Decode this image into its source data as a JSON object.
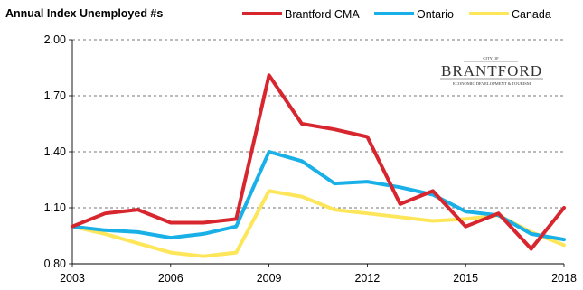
{
  "chart_data": {
    "type": "line",
    "title": "Annual Index Unemployed #s",
    "x": [
      2003,
      2004,
      2005,
      2006,
      2007,
      2008,
      2009,
      2010,
      2011,
      2012,
      2013,
      2014,
      2015,
      2016,
      2017,
      2018
    ],
    "x_tick_labels": [
      "2003",
      "2006",
      "2009",
      "2012",
      "2015",
      "2018"
    ],
    "y_tick_labels": [
      "0.80",
      "1.10",
      "1.40",
      "1.70",
      "2.00"
    ],
    "ylim": [
      0.8,
      2.0
    ],
    "grid": "horizontal dashed",
    "legend_position": "top",
    "series": [
      {
        "name": "Brantford CMA",
        "color": "#d7262e",
        "values": [
          1.0,
          1.07,
          1.09,
          1.02,
          1.02,
          1.04,
          1.81,
          1.55,
          1.52,
          1.48,
          1.12,
          1.19,
          1.0,
          1.07,
          0.88,
          1.1
        ]
      },
      {
        "name": "Ontario",
        "color": "#18b0e6",
        "values": [
          1.0,
          0.98,
          0.97,
          0.94,
          0.96,
          1.0,
          1.4,
          1.35,
          1.23,
          1.24,
          1.21,
          1.17,
          1.08,
          1.06,
          0.96,
          0.93
        ]
      },
      {
        "name": "Canada",
        "color": "#fde65a",
        "values": [
          1.0,
          0.96,
          0.91,
          0.86,
          0.84,
          0.86,
          1.19,
          1.16,
          1.09,
          1.07,
          1.05,
          1.03,
          1.04,
          1.06,
          0.97,
          0.9
        ]
      }
    ],
    "logo": {
      "top_text": "CITY OF",
      "name": "BRANTFORD",
      "subtitle": "ECONOMIC DEVELOPMENT & TOURISM"
    }
  }
}
